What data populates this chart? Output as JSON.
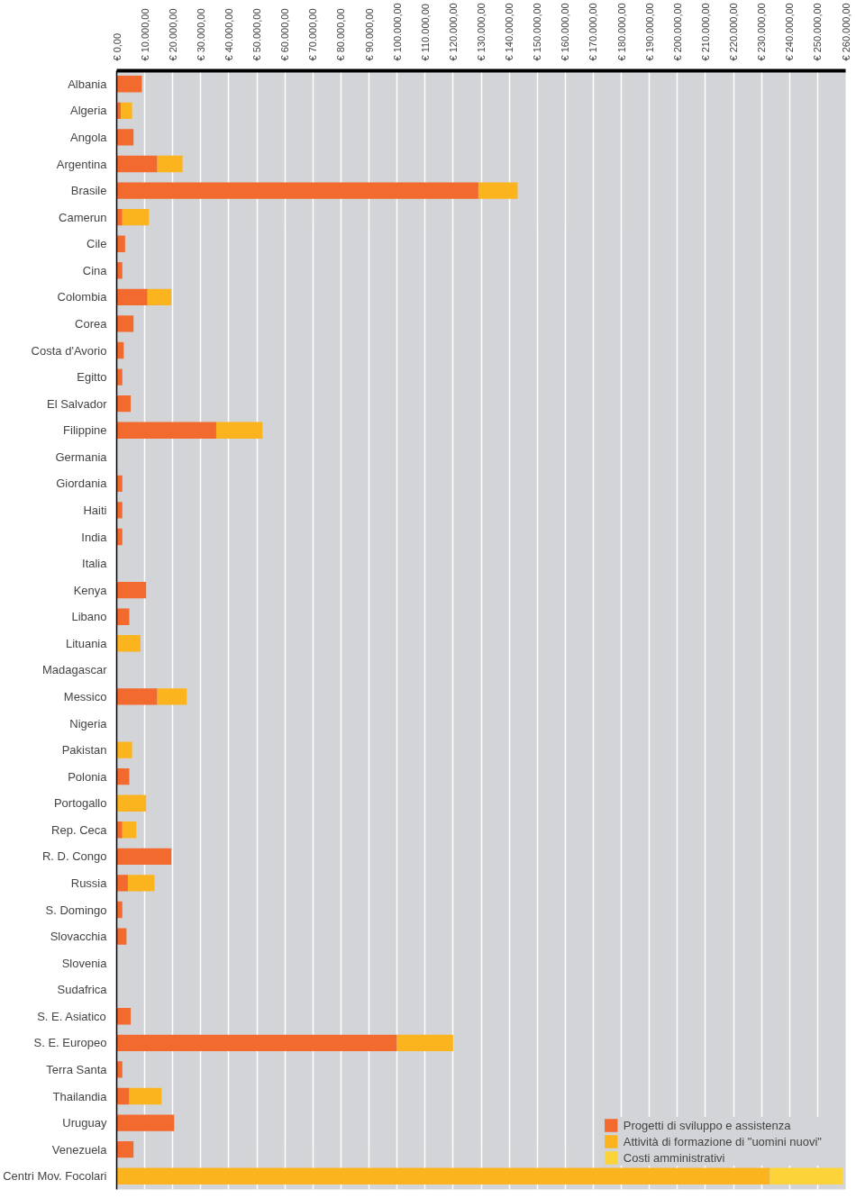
{
  "chart_data": {
    "type": "bar",
    "orientation": "horizontal",
    "stacked": true,
    "legend": "bottom right",
    "grid": "x",
    "categories": [
      "Albania",
      "Algeria",
      "Angola",
      "Argentina",
      "Brasile",
      "Camerun",
      "Cile",
      "Cina",
      "Colombia",
      "Corea",
      "Costa d'Avorio",
      "Egitto",
      "El Salvador",
      "Filippine",
      "Germania",
      "Giordania",
      "Haiti",
      "India",
      "Italia",
      "Kenya",
      "Libano",
      "Lituania",
      "Madagascar",
      "Messico",
      "Nigeria",
      "Pakistan",
      "Polonia",
      "Portogallo",
      "Rep. Ceca",
      "R. D. Congo",
      "Russia",
      "S. Domingo",
      "Slovacchia",
      "Slovenia",
      "Sudafrica",
      "S. E. Asiatico",
      "S. E. Europeo",
      "Terra Santa",
      "Thailandia",
      "Uruguay",
      "Venezuela",
      "Centri Mov. Focolari"
    ],
    "series": [
      {
        "name": "Progetti di sviluppo e assistenza",
        "color": "#f26a2e",
        "values": [
          9000,
          1500,
          6000,
          14500,
          129000,
          2000,
          3000,
          2000,
          11000,
          6000,
          2500,
          2000,
          5000,
          35500,
          0,
          2000,
          2000,
          2000,
          0,
          10500,
          4500,
          0,
          0,
          14500,
          0,
          0,
          4500,
          0,
          2000,
          19500,
          4000,
          2000,
          3500,
          0,
          0,
          5000,
          100000,
          2000,
          4500,
          20500,
          6000,
          0
        ]
      },
      {
        "name": "Attività di formazione di \"uomini nuovi\"",
        "color": "#fbb41e",
        "values": [
          0,
          4000,
          0,
          9000,
          14000,
          9500,
          0,
          0,
          8500,
          0,
          0,
          0,
          0,
          16500,
          0,
          0,
          0,
          0,
          0,
          0,
          0,
          8500,
          0,
          10500,
          0,
          5500,
          0,
          10500,
          5000,
          0,
          9500,
          0,
          0,
          0,
          0,
          0,
          20000,
          0,
          11500,
          0,
          0,
          233000
        ]
      },
      {
        "name": "Costi amministrativi",
        "color": "#fdd33a",
        "values": [
          0,
          0,
          0,
          0,
          0,
          0,
          0,
          0,
          0,
          0,
          0,
          0,
          0,
          0,
          0,
          0,
          0,
          0,
          0,
          0,
          0,
          0,
          0,
          0,
          0,
          0,
          0,
          0,
          0,
          0,
          0,
          0,
          0,
          0,
          0,
          0,
          0,
          0,
          0,
          0,
          0,
          26000
        ]
      }
    ],
    "xlim": [
      0,
      260000
    ],
    "xticks": [
      {
        "value": 0,
        "label": "€ 0,00"
      },
      {
        "value": 10000,
        "label": "€ 10.000,00"
      },
      {
        "value": 20000,
        "label": "€ 20.000,00"
      },
      {
        "value": 30000,
        "label": "€ 30.000,00"
      },
      {
        "value": 40000,
        "label": "€ 40.000,00"
      },
      {
        "value": 50000,
        "label": "€ 50.000,00"
      },
      {
        "value": 60000,
        "label": "€ 60.000,00"
      },
      {
        "value": 70000,
        "label": "€ 70.000,00"
      },
      {
        "value": 80000,
        "label": "€ 80.000,00"
      },
      {
        "value": 90000,
        "label": "€ 90.000,00"
      },
      {
        "value": 100000,
        "label": "€ 100.000,00"
      },
      {
        "value": 110000,
        "label": "€ 110.000,00"
      },
      {
        "value": 120000,
        "label": "€ 120.000,00"
      },
      {
        "value": 130000,
        "label": "€ 130.000,00"
      },
      {
        "value": 140000,
        "label": "€ 140.000,00"
      },
      {
        "value": 150000,
        "label": "€ 150.000,00"
      },
      {
        "value": 160000,
        "label": "€ 160.000,00"
      },
      {
        "value": 170000,
        "label": "€ 170.000,00"
      },
      {
        "value": 180000,
        "label": "€ 180.000,00"
      },
      {
        "value": 190000,
        "label": "€ 190.000,00"
      },
      {
        "value": 200000,
        "label": "€ 200.000,00"
      },
      {
        "value": 210000,
        "label": "€ 210.000,00"
      },
      {
        "value": 220000,
        "label": "€ 220.000,00"
      },
      {
        "value": 230000,
        "label": "€ 230.000,00"
      },
      {
        "value": 240000,
        "label": "€ 240.000,00"
      },
      {
        "value": 250000,
        "label": "€ 250.000,00"
      },
      {
        "value": 260000,
        "label": "€ 260.000,00"
      }
    ]
  }
}
